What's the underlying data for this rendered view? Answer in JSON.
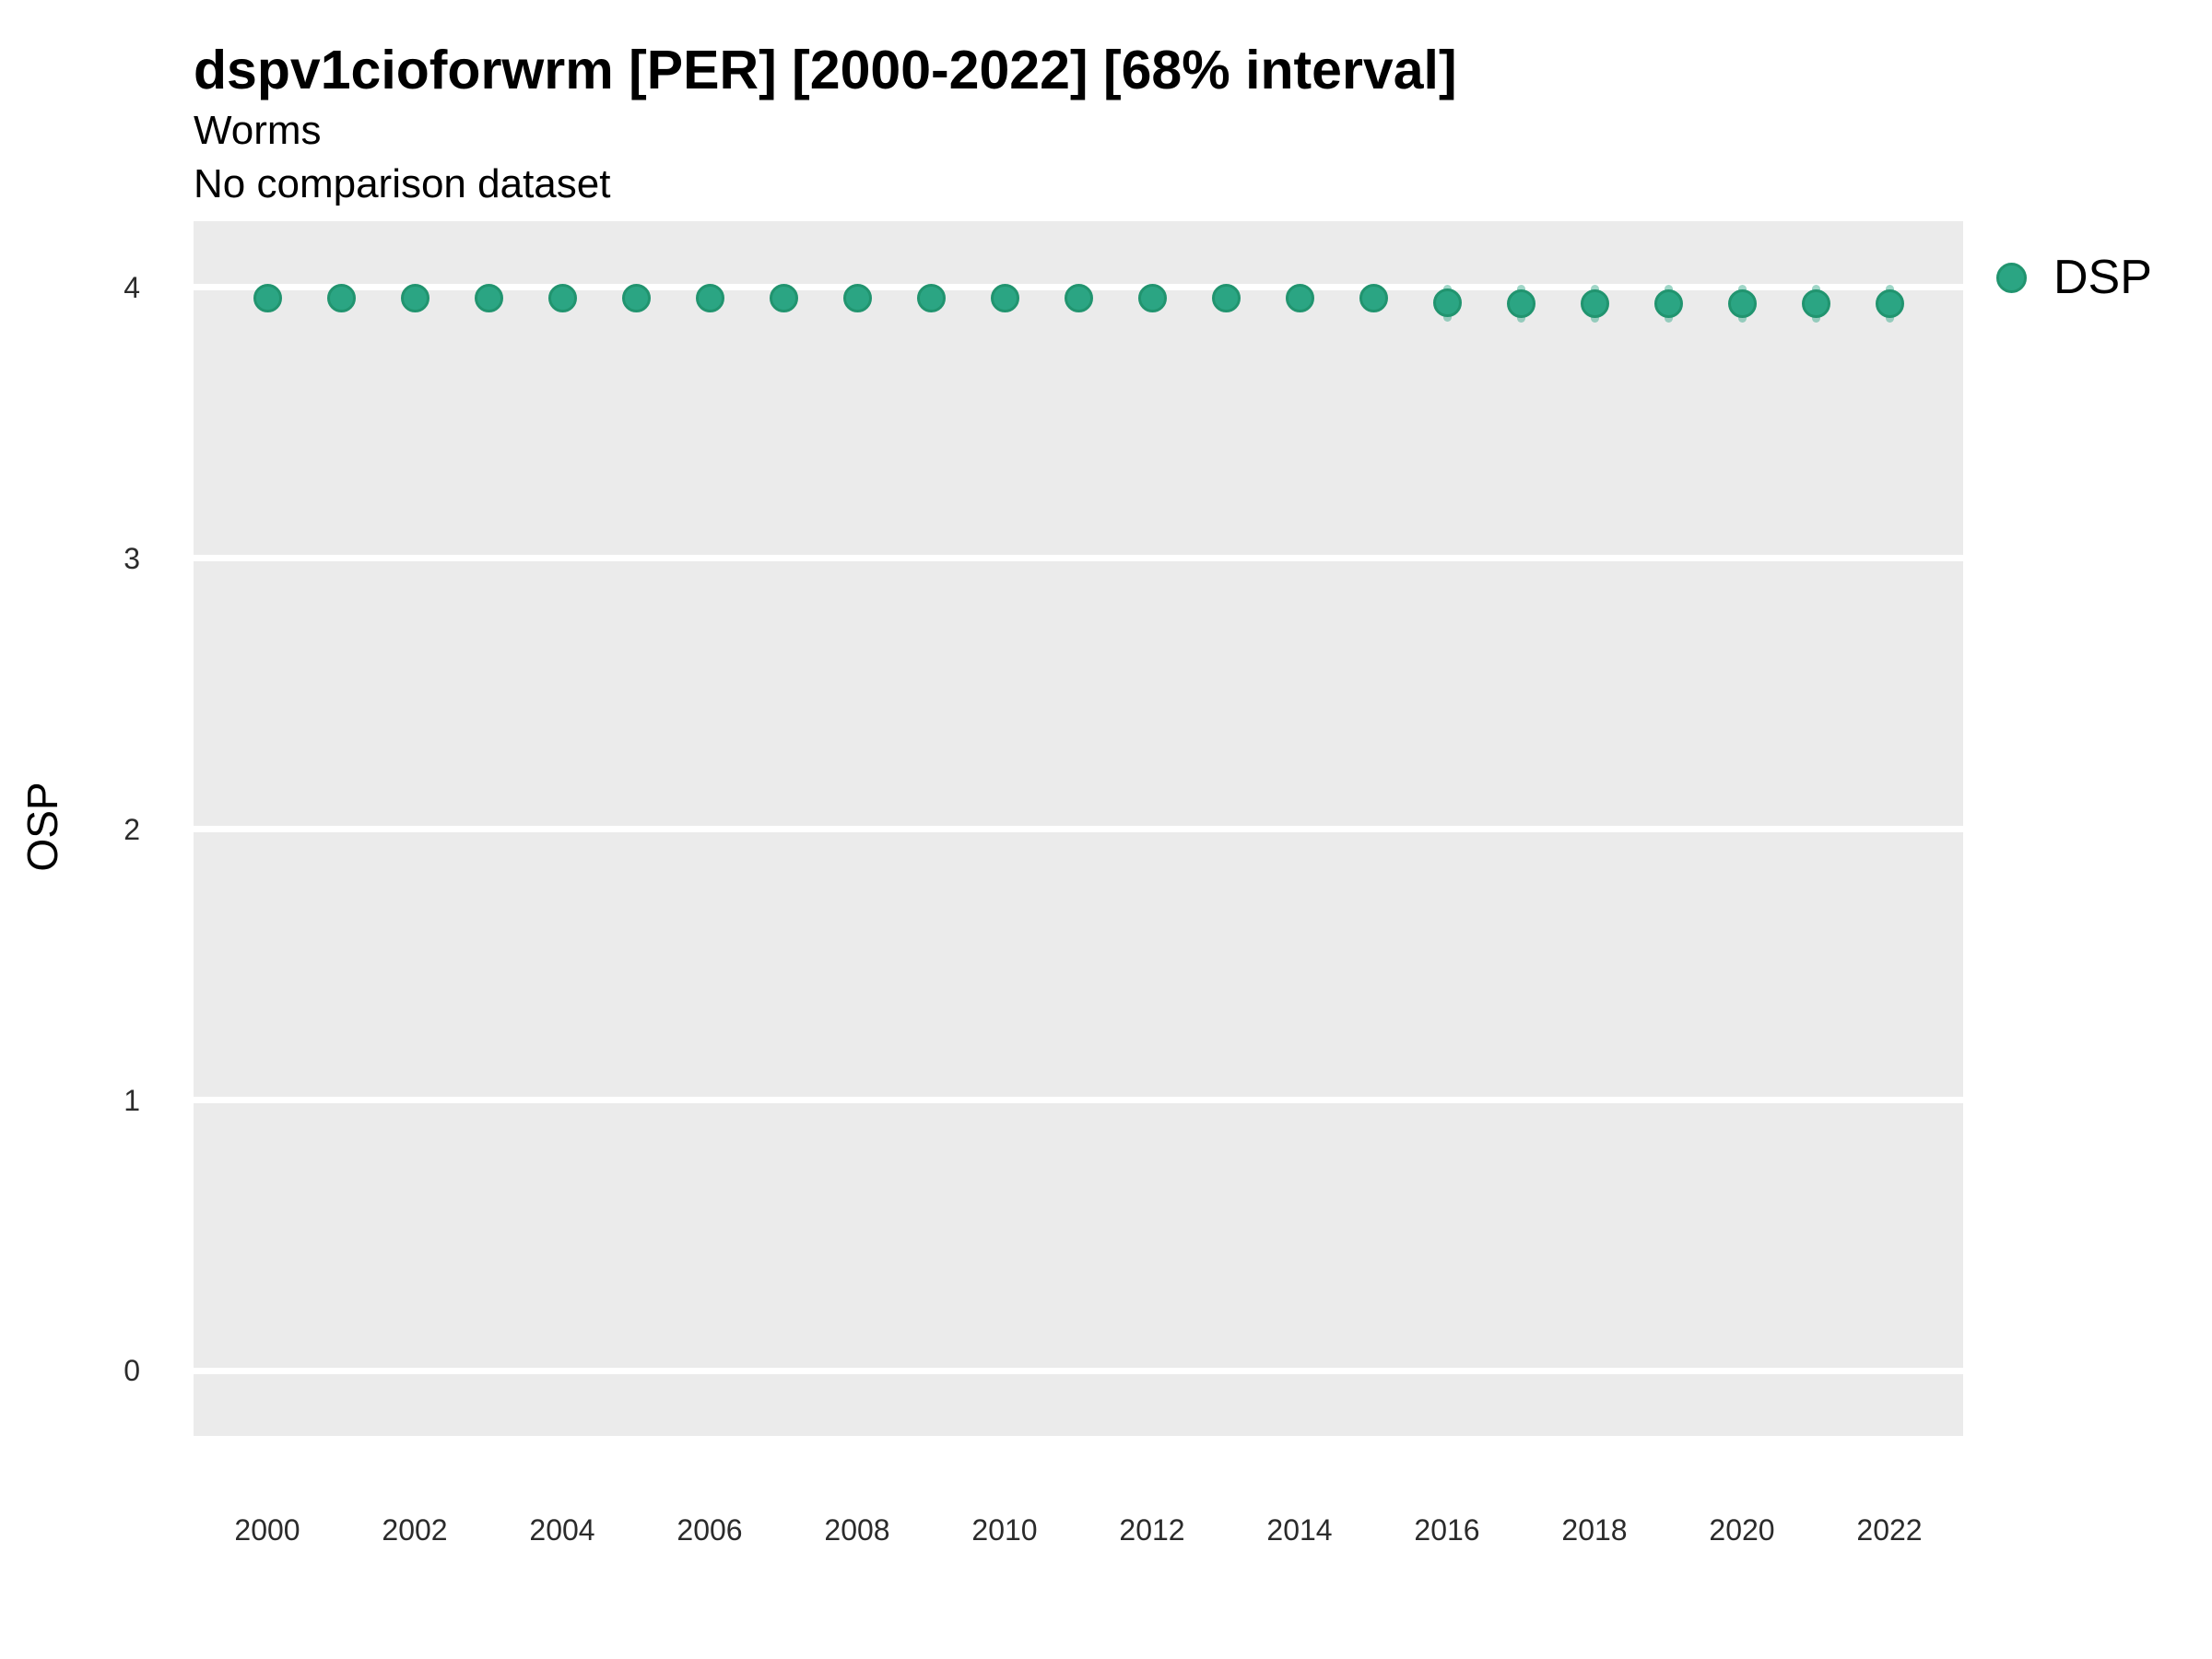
{
  "header": {
    "title": "dspv1cioforwrm [PER] [2000-2022] [68% interval]",
    "subtitle1": "Worms",
    "subtitle2": "No comparison dataset"
  },
  "legend": {
    "label": "DSP",
    "marker": "filled-circle"
  },
  "colors": {
    "point_fill": "#2BA583",
    "point_stroke": "#21946F",
    "interval": "rgba(43,165,131,0.45)",
    "panel_background": "#EBEBEB",
    "gridline": "#FFFFFF",
    "text": "#000000",
    "tick_text": "#2B2B2B"
  },
  "chart_data": {
    "type": "scatter",
    "title": "dspv1cioforwrm [PER] [2000-2022] [68% interval]",
    "subtitle": "Worms",
    "note": "No comparison dataset",
    "xlabel": "",
    "ylabel": "OSP",
    "xlim": [
      1999,
      2023
    ],
    "ylim": [
      -0.24,
      4.245
    ],
    "xticks": [
      2000,
      2002,
      2004,
      2006,
      2008,
      2010,
      2012,
      2014,
      2016,
      2018,
      2020,
      2022
    ],
    "yticks": [
      0,
      1,
      2,
      3,
      4
    ],
    "grid": "horizontal-major-only",
    "legend_position": "right-top",
    "series": [
      {
        "name": "DSP",
        "color": "#2BA583",
        "interval_level": "68%",
        "points": [
          {
            "year": 2000,
            "value": 3.96,
            "lo": 3.91,
            "hi": 4.01
          },
          {
            "year": 2001,
            "value": 3.96,
            "lo": 3.91,
            "hi": 4.01
          },
          {
            "year": 2002,
            "value": 3.96,
            "lo": 3.91,
            "hi": 4.01
          },
          {
            "year": 2003,
            "value": 3.96,
            "lo": 3.91,
            "hi": 4.01
          },
          {
            "year": 2004,
            "value": 3.96,
            "lo": 3.91,
            "hi": 4.01
          },
          {
            "year": 2005,
            "value": 3.96,
            "lo": 3.91,
            "hi": 4.01
          },
          {
            "year": 2006,
            "value": 3.96,
            "lo": 3.91,
            "hi": 4.01
          },
          {
            "year": 2007,
            "value": 3.96,
            "lo": 3.91,
            "hi": 4.01
          },
          {
            "year": 2008,
            "value": 3.96,
            "lo": 3.91,
            "hi": 4.01
          },
          {
            "year": 2009,
            "value": 3.96,
            "lo": 3.91,
            "hi": 4.01
          },
          {
            "year": 2010,
            "value": 3.96,
            "lo": 3.91,
            "hi": 4.01
          },
          {
            "year": 2011,
            "value": 3.96,
            "lo": 3.91,
            "hi": 4.01
          },
          {
            "year": 2012,
            "value": 3.96,
            "lo": 3.91,
            "hi": 4.01
          },
          {
            "year": 2013,
            "value": 3.96,
            "lo": 3.91,
            "hi": 4.01
          },
          {
            "year": 2014,
            "value": 3.96,
            "lo": 3.91,
            "hi": 4.01
          },
          {
            "year": 2015,
            "value": 3.96,
            "lo": 3.91,
            "hi": 4.01
          },
          {
            "year": 2016,
            "value": 3.945,
            "lo": 3.875,
            "hi": 4.01
          },
          {
            "year": 2017,
            "value": 3.94,
            "lo": 3.87,
            "hi": 4.01
          },
          {
            "year": 2018,
            "value": 3.94,
            "lo": 3.87,
            "hi": 4.01
          },
          {
            "year": 2019,
            "value": 3.94,
            "lo": 3.87,
            "hi": 4.01
          },
          {
            "year": 2020,
            "value": 3.94,
            "lo": 3.87,
            "hi": 4.01
          },
          {
            "year": 2021,
            "value": 3.94,
            "lo": 3.87,
            "hi": 4.01
          },
          {
            "year": 2022,
            "value": 3.94,
            "lo": 3.87,
            "hi": 4.01
          }
        ]
      }
    ]
  }
}
